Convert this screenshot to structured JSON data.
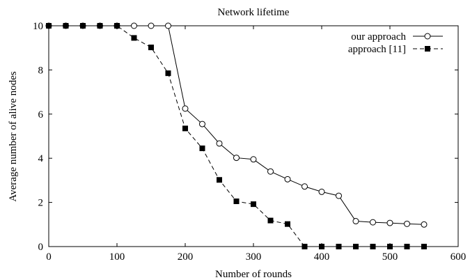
{
  "chart_data": {
    "type": "line",
    "title": "Network lifetime",
    "xlabel": "Number of rounds",
    "ylabel": "Average number of alive nodes",
    "xlim": [
      0,
      600
    ],
    "ylim": [
      0,
      10
    ],
    "xticks": [
      0,
      100,
      200,
      300,
      400,
      500,
      600
    ],
    "yticks": [
      0,
      2,
      4,
      6,
      8,
      10
    ],
    "grid": false,
    "legend_position": "top-right",
    "series": [
      {
        "name": "our approach",
        "marker": "open-circle",
        "line": "solid",
        "color": "#000000",
        "x": [
          0,
          25,
          50,
          75,
          100,
          125,
          150,
          175,
          200,
          225,
          250,
          275,
          300,
          325,
          350,
          375,
          400,
          425,
          450,
          475,
          500,
          525,
          550
        ],
        "y": [
          10,
          10,
          10,
          10,
          10,
          10,
          10,
          10,
          6.25,
          5.55,
          4.67,
          4.02,
          3.95,
          3.4,
          3.05,
          2.72,
          2.48,
          2.3,
          1.15,
          1.1,
          1.07,
          1.03,
          1.0
        ]
      },
      {
        "name": "approach [11]",
        "marker": "filled-square",
        "line": "dashed",
        "color": "#000000",
        "x": [
          0,
          25,
          50,
          75,
          100,
          125,
          150,
          175,
          200,
          225,
          250,
          275,
          300,
          325,
          350,
          375,
          400,
          425,
          450,
          475,
          500,
          525,
          550
        ],
        "y": [
          10,
          10,
          10,
          10,
          10,
          9.45,
          9.02,
          7.85,
          5.35,
          4.45,
          3.02,
          2.05,
          1.92,
          1.18,
          1.02,
          0,
          0,
          0,
          0,
          0,
          0,
          0,
          0
        ]
      }
    ]
  }
}
